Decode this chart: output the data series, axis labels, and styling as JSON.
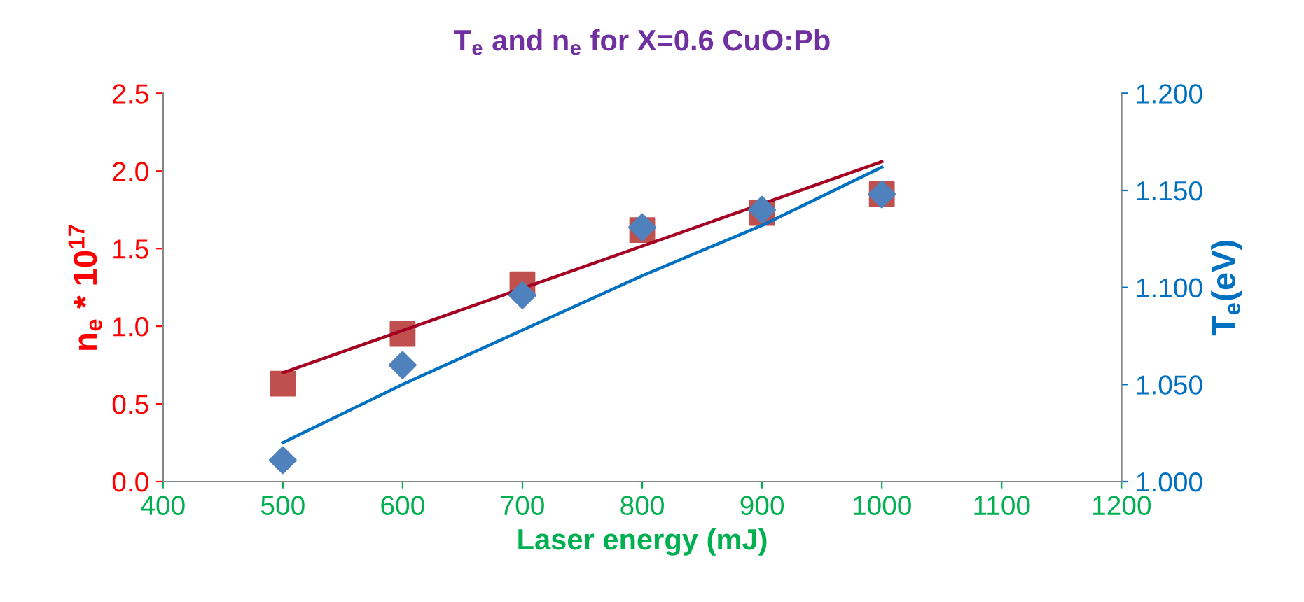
{
  "chart_data": {
    "type": "scatter",
    "title": "T$_{e}$ and n$_{e}$ for X=0.6 CuO:Pb",
    "xlabel": "Laser energy (mJ)",
    "ylabel": "n$_{e}$ * 10$^{17}$",
    "y2label": "T$_{e}$(eV)",
    "x": [
      500,
      600,
      700,
      800,
      900,
      1000
    ],
    "series": [
      {
        "marker": "square",
        "color": "#c0504d",
        "values": [
          0.63,
          0.95,
          1.27,
          1.62,
          1.73,
          1.85
        ]
      },
      {
        "marker": "diamond",
        "color": "#4f81bd",
        "axis": "y2",
        "values": [
          1.011,
          1.06,
          1.096,
          1.131,
          1.14,
          1.148
        ]
      },
      {
        "type": "line",
        "marker": "none",
        "color": "#a50021",
        "x": [
          500,
          1000
        ],
        "values": [
          0.7,
          2.06
        ]
      },
      {
        "type": "line",
        "marker": "none",
        "color": "#0070c0",
        "axis": "y2",
        "x": [
          500,
          600,
          700,
          800,
          900,
          1000
        ],
        "values": [
          1.02,
          1.05,
          1.078,
          1.106,
          1.132,
          1.162
        ]
      }
    ],
    "xlim": [
      400,
      1200
    ],
    "xticks": [
      400,
      500,
      600,
      700,
      800,
      900,
      1000,
      1100,
      1200
    ],
    "ylim": [
      0,
      2.5
    ],
    "yticks": [
      {
        "value": 0,
        "label": "0.0"
      },
      0.5,
      {
        "value": 1,
        "label": "1.0"
      },
      1.5,
      {
        "value": 2,
        "label": "2.0"
      },
      2.5
    ],
    "y2lim": [
      1.0,
      1.2
    ],
    "y2ticks": [
      {
        "value": 1.0,
        "label": "1.000"
      },
      {
        "value": 1.05,
        "label": "1.050"
      },
      {
        "value": 1.1,
        "label": "1.100"
      },
      {
        "value": 1.15,
        "label": "1.150"
      },
      {
        "value": 1.2,
        "label": "1.200"
      }
    ],
    "grid": false
  }
}
